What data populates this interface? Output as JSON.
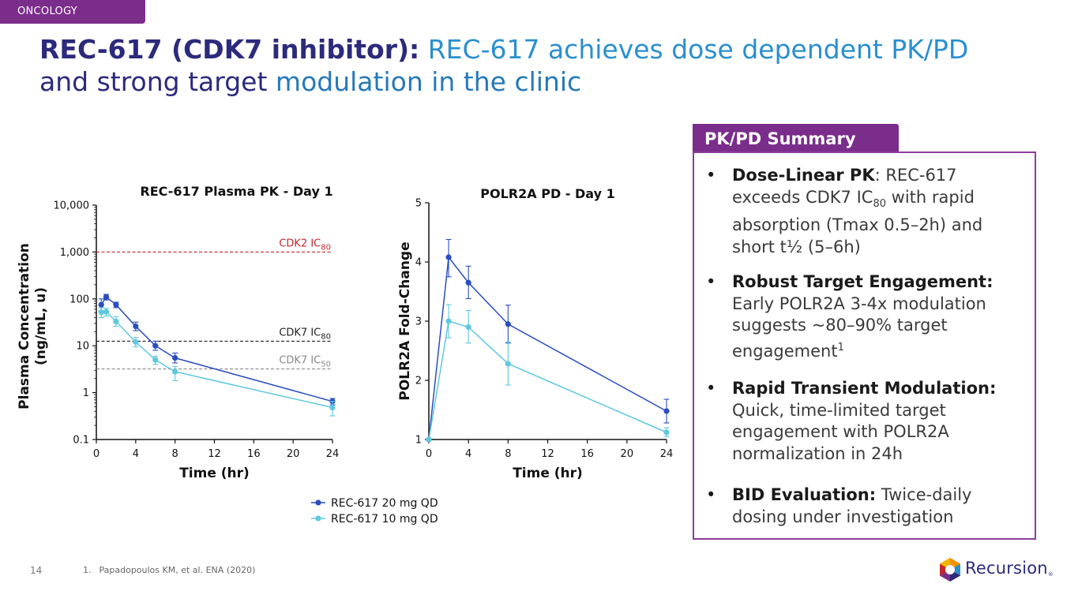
{
  "tag": "ONCOLOGY",
  "title": {
    "bold": "REC-617 (CDK7 inhibitor):",
    "line1_rest": " REC-617 achieves dose dependent PK/PD",
    "line2_a": "and strong target",
    "line2_b": " modulation in the clinic"
  },
  "colors": {
    "purple": "#7b2d8b",
    "navy": "#2b2a7c",
    "blue": "#2a8fcf",
    "dark_series": "#2a4dbf",
    "light_series": "#5ec8df",
    "cdk2": "#c0282d",
    "cdk7_80": "#222222",
    "cdk7_50": "#8a8a8a"
  },
  "chart_data": [
    {
      "type": "line",
      "title": "REC-617 Plasma PK - Day 1",
      "xlabel": "Time (hr)",
      "ylabel_line1": "Plasma Concentration",
      "ylabel_line2": "(ng/mL, u)",
      "yscale": "log",
      "xlim": [
        0,
        24
      ],
      "ylim": [
        0.1,
        10000
      ],
      "xticks": [
        0,
        4,
        8,
        12,
        16,
        20,
        24
      ],
      "yticks": [
        0.1,
        1,
        10,
        100,
        1000,
        10000
      ],
      "ytick_labels": [
        "0.1",
        "1",
        "10",
        "100",
        "1,000",
        "10,000"
      ],
      "reference_lines": [
        {
          "label": "CDK2 IC",
          "sub": "80",
          "value": 1000,
          "color": "#c0282d"
        },
        {
          "label": "CDK7 IC",
          "sub": "80",
          "value": 12.5,
          "color": "#222222"
        },
        {
          "label": "CDK7 IC",
          "sub": "50",
          "value": 3.2,
          "color": "#8a8a8a"
        }
      ],
      "series": [
        {
          "name": "REC-617 20 mg QD",
          "color": "#2a4dbf",
          "x": [
            0.5,
            1,
            2,
            4,
            6,
            8,
            24
          ],
          "y": [
            75,
            110,
            75,
            26,
            10,
            5.5,
            0.65
          ],
          "err": [
            [
              55,
              100
            ],
            [
              95,
              125
            ],
            [
              65,
              85
            ],
            [
              21,
              32
            ],
            [
              8,
              12.5
            ],
            [
              4.3,
              7
            ],
            [
              0.55,
              0.75
            ]
          ]
        },
        {
          "name": "REC-617 10 mg QD",
          "color": "#5ec8df",
          "x": [
            0.5,
            1,
            2,
            4,
            6,
            8,
            24
          ],
          "y": [
            52,
            53,
            33,
            12,
            5,
            2.8,
            0.48
          ],
          "err": [
            [
              40,
              65
            ],
            [
              43,
              63
            ],
            [
              26,
              42
            ],
            [
              9.5,
              15
            ],
            [
              4,
              6
            ],
            [
              1.8,
              3.6
            ],
            [
              0.32,
              0.65
            ]
          ]
        }
      ]
    },
    {
      "type": "line",
      "title": "POLR2A PD - Day 1",
      "xlabel": "Time (hr)",
      "ylabel": "POLR2A Fold-Change",
      "xlim": [
        0,
        24
      ],
      "ylim": [
        1,
        5
      ],
      "xticks": [
        0,
        4,
        8,
        12,
        16,
        20,
        24
      ],
      "yticks": [
        1,
        2,
        3,
        4,
        5
      ],
      "series": [
        {
          "name": "REC-617 20 mg QD",
          "color": "#2a4dbf",
          "x": [
            0,
            2,
            4,
            8,
            24
          ],
          "y": [
            1,
            4.08,
            3.65,
            2.95,
            1.48
          ],
          "err": [
            [
              1,
              1
            ],
            [
              3.75,
              4.38
            ],
            [
              3.38,
              3.93
            ],
            [
              2.63,
              3.27
            ],
            [
              1.28,
              1.68
            ]
          ]
        },
        {
          "name": "REC-617 10 mg QD",
          "color": "#5ec8df",
          "x": [
            0,
            2,
            4,
            8,
            24
          ],
          "y": [
            1,
            3.0,
            2.9,
            2.28,
            1.12
          ],
          "err": [
            [
              1,
              1
            ],
            [
              2.72,
              3.28
            ],
            [
              2.63,
              3.18
            ],
            [
              1.92,
              2.65
            ],
            [
              1.05,
              1.2
            ]
          ]
        }
      ]
    }
  ],
  "legend": [
    "REC-617 20 mg QD",
    "REC-617 10 mg QD"
  ],
  "summary": {
    "heading": "PK/PD Summary",
    "b1_bold": "Dose-Linear PK",
    "b1_a": ": REC-617 exceeds CDK7 IC",
    "b1_sub": "80",
    "b1_b": " with rapid absorption (Tmax 0.5–2h) and short t½ (5–6h)",
    "b2_bold": "Robust Target Engagement:",
    "b2_a": " Early POLR2A 3-4x modulation suggests ~80–90% target engagement",
    "b2_sup": "1",
    "b3_bold": "Rapid Transient Modulation:",
    "b3_a": " Quick, time-limited target engagement with POLR2A normalization in 24h",
    "b4_bold": "BID Evaluation:",
    "b4_a": " Twice-daily dosing under investigation"
  },
  "footer": {
    "page": "14",
    "ref_num": "1.",
    "ref_text": "Papadopoulos KM, et al. ENA (2020)",
    "logo_text": "Recursion",
    "logo_mark": "®"
  }
}
